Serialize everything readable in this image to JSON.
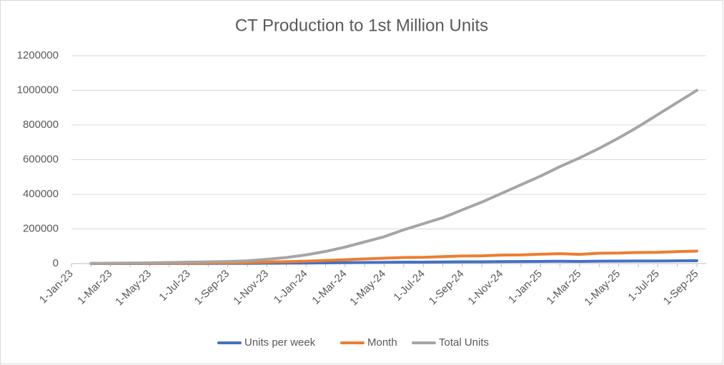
{
  "chart_data": {
    "type": "line",
    "title": "CT Production to 1st Million Units",
    "categories": [
      "1-Jan-23",
      null,
      "1-Mar-23",
      null,
      "1-May-23",
      null,
      "1-Jul-23",
      null,
      "1-Sep-23",
      null,
      "1-Nov-23",
      null,
      "1-Jan-24",
      null,
      "1-Mar-24",
      null,
      "1-May-24",
      null,
      "1-Jul-24",
      null,
      "1-Sep-24",
      null,
      "1-Nov-24",
      null,
      "1-Jan-25",
      null,
      "1-Mar-25",
      null,
      "1-May-25",
      null,
      "1-Jul-25",
      null,
      "1-Sep-25"
    ],
    "series": [
      {
        "name": "Units per week",
        "color": "#4472c4",
        "values": [
          null,
          70,
          140,
          210,
          280,
          420,
          510,
          650,
          810,
          1160,
          2090,
          2560,
          3260,
          4190,
          5120,
          6280,
          7210,
          8140,
          8370,
          9300,
          10230,
          10470,
          11400,
          11630,
          12560,
          13260,
          12330,
          13950,
          14190,
          14880,
          15120,
          16050,
          16740
        ]
      },
      {
        "name": "Month",
        "color": "#ed7d31",
        "values": [
          null,
          300,
          600,
          900,
          1200,
          1800,
          2200,
          2800,
          3500,
          5000,
          9000,
          11000,
          14000,
          18000,
          22000,
          27000,
          31000,
          35000,
          36000,
          40000,
          44000,
          45000,
          49000,
          50000,
          54000,
          57000,
          53000,
          60000,
          61000,
          64000,
          65000,
          69000,
          72000
        ]
      },
      {
        "name": "Total Units",
        "color": "#a5a5a5",
        "values": [
          null,
          1000,
          2000,
          3000,
          4000,
          6000,
          8000,
          10000,
          12000,
          16000,
          25000,
          35000,
          50000,
          70000,
          95000,
          125000,
          155000,
          195000,
          230000,
          265000,
          310000,
          355000,
          405000,
          455000,
          505000,
          560000,
          610000,
          665000,
          725000,
          790000,
          860000,
          930000,
          1000000
        ]
      }
    ],
    "ylim": [
      0,
      1200000
    ],
    "yticks": [
      0,
      200000,
      400000,
      600000,
      800000,
      1000000,
      1200000
    ],
    "grid": true,
    "legend": "bottom"
  }
}
